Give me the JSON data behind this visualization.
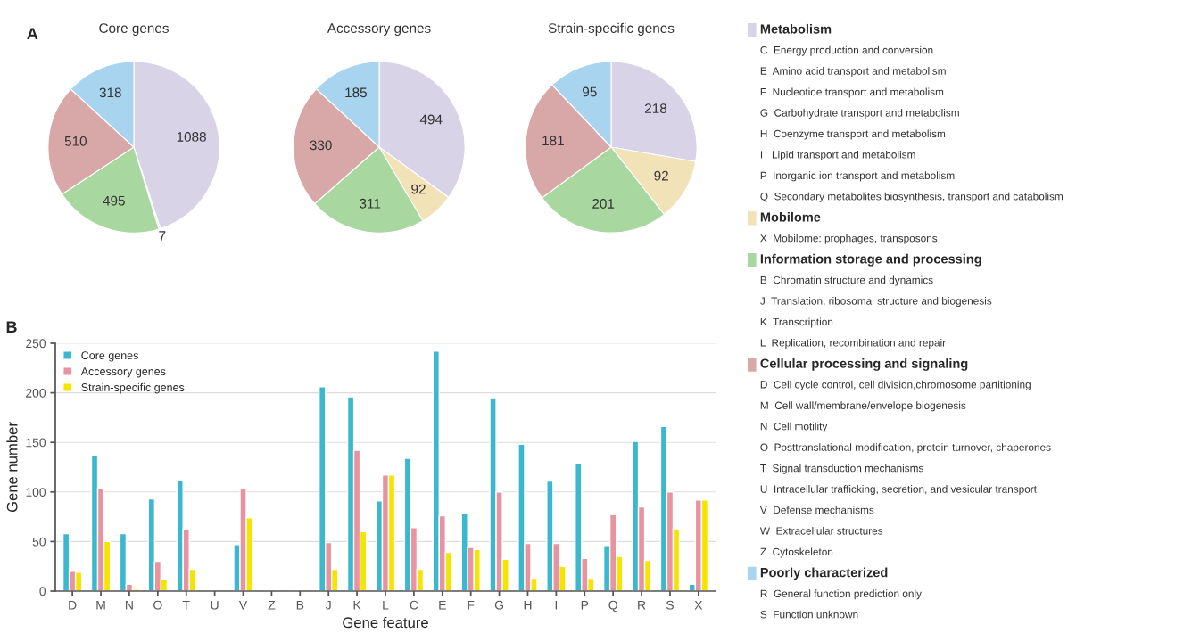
{
  "chart_data": [
    {
      "type": "pie",
      "title": "Core genes",
      "annotations": [
        "A"
      ],
      "legend": "right",
      "data_labels": true,
      "categories": [
        "Metabolism",
        "Mobilome",
        "Information storage and processing",
        "Cellular processing and signaling",
        "Poorly characterized"
      ],
      "values": [
        1088,
        7,
        495,
        510,
        318
      ],
      "colors": [
        "#d9d3e8",
        "#f2e2b8",
        "#a8d8a0",
        "#d8a8a8",
        "#a8d4f0"
      ]
    },
    {
      "type": "pie",
      "title": "Accessory genes",
      "data_labels": true,
      "values": [
        494,
        92,
        311,
        330,
        185
      ],
      "colors": [
        "#d9d3e8",
        "#f2e2b8",
        "#a8d8a0",
        "#d8a8a8",
        "#a8d4f0"
      ]
    },
    {
      "type": "pie",
      "title": "Strain-specific genes",
      "data_labels": true,
      "values": [
        218,
        92,
        201,
        181,
        95
      ],
      "colors": [
        "#d9d3e8",
        "#f2e2b8",
        "#a8d8a0",
        "#d8a8a8",
        "#a8d4f0"
      ]
    },
    {
      "type": "bar",
      "annotations": [
        "B"
      ],
      "xlabel": "Gene feature",
      "ylabel": "Gene number",
      "legend": "top left",
      "grid": "y",
      "ylim": [
        0,
        250
      ],
      "yticks": [
        0,
        50,
        100,
        150,
        200,
        250
      ],
      "categories": [
        "D",
        "M",
        "N",
        "O",
        "T",
        "U",
        "V",
        "Z",
        "B",
        "J",
        "K",
        "L",
        "C",
        "E",
        "F",
        "G",
        "H",
        "I",
        "P",
        "Q",
        "R",
        "S",
        "X"
      ],
      "series": [
        {
          "name": "Core genes",
          "color": "#3bb8d0",
          "values": [
            58,
            137,
            58,
            93,
            112,
            null,
            47,
            1,
            1,
            206,
            196,
            91,
            134,
            242,
            78,
            195,
            148,
            111,
            129,
            46,
            151,
            166,
            7
          ]
        },
        {
          "name": "Accessory genes",
          "color": "#e8939f",
          "values": [
            20,
            104,
            7,
            30,
            62,
            null,
            104,
            null,
            null,
            49,
            142,
            117,
            64,
            76,
            44,
            100,
            48,
            48,
            33,
            77,
            85,
            100,
            92
          ]
        },
        {
          "name": "Strain-specific genes",
          "color": "#f5e400",
          "values": [
            19,
            50,
            2,
            12,
            22,
            null,
            74,
            null,
            null,
            22,
            60,
            117,
            22,
            39,
            42,
            32,
            13,
            25,
            13,
            35,
            31,
            63,
            92
          ]
        }
      ]
    },
    {
      "type": "other",
      "annotations": [
        [
          "C  Energy production and conversion",
          "E  Amino acid transport and metabolism",
          "F  Nucleotide transport and metabolism",
          "G  Carbohydrate transport and metabolism",
          "H  Coenzyme transport and metabolism",
          "I   Lipid transport and metabolism",
          "P  Inorganic ion transport and metabolism",
          "Q  Secondary metabolites biosynthesis, transport and catabolism"
        ],
        [
          "X  Mobilome: prophages, transposons"
        ],
        [
          "B  Chromatin structure and dynamics",
          "J  Translation, ribosomal structure and biogenesis",
          "K  Transcription",
          "L  Replication, recombination and repair"
        ],
        [
          "D  Cell cycle control, cell division,chromosome partitioning",
          "M  Cell wall/membrane/envelope biogenesis",
          "N  Cell motility",
          "O  Posttranslational modification, protein turnover, chaperones",
          "T  Signal transduction mechanisms",
          "U  Intracellular trafficking, secretion, and vesicular transport",
          "V  Defense mechanisms",
          "W  Extracellular structures",
          "Z  Cytoskeleton"
        ],
        [
          "R  General function prediction only",
          "S  Function unknown"
        ]
      ]
    }
  ]
}
